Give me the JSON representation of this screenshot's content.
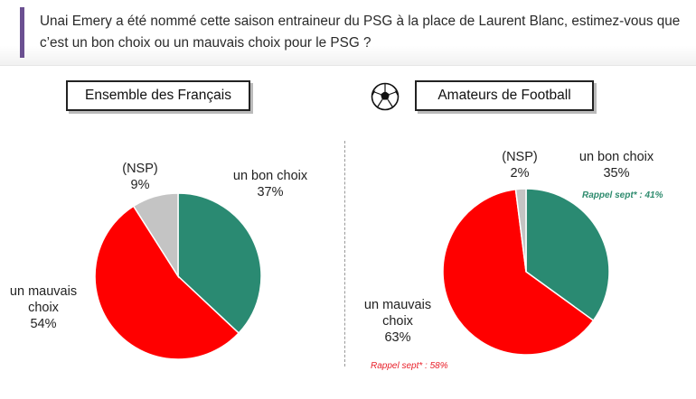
{
  "question": "Unai Emery a été nommé cette saison entraineur du PSG à la place de Laurent Blanc, estimez-vous que c’est un bon choix ou un mauvais choix pour le PSG ?",
  "chart_data": [
    {
      "type": "pie",
      "title": "Ensemble des Français",
      "categories": [
        "un bon choix",
        "un mauvais choix",
        "(NSP)"
      ],
      "values": [
        37,
        54,
        9
      ],
      "value_labels": [
        "37%",
        "54%",
        "9%"
      ],
      "colors": [
        "#2a8a72",
        "#ff0000",
        "#c4c4c4"
      ]
    },
    {
      "type": "pie",
      "title": "Amateurs de Football",
      "categories": [
        "un bon choix",
        "un mauvais choix",
        "(NSP)"
      ],
      "values": [
        35,
        63,
        2
      ],
      "value_labels": [
        "35%",
        "63%",
        "2%"
      ],
      "colors": [
        "#2a8a72",
        "#ff0000",
        "#c4c4c4"
      ],
      "annotations": {
        "good": "Rappel sept* : 41%",
        "bad": "Rappel sept* : 58%"
      }
    }
  ],
  "icons": {
    "ball": "soccer-ball-icon"
  }
}
